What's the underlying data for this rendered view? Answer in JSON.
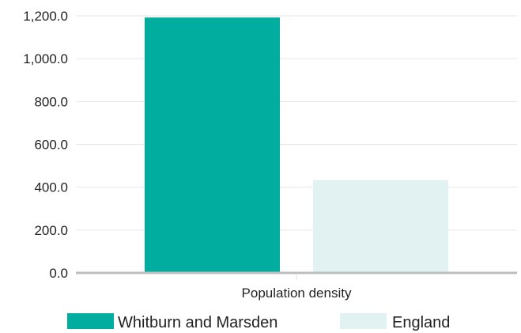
{
  "chart_data": {
    "type": "bar",
    "categories": [
      "Population density"
    ],
    "series": [
      {
        "name": "Whitburn and Marsden",
        "values": [
          1192.0
        ],
        "color": "#00ad9f"
      },
      {
        "name": "England",
        "values": [
          434.0
        ],
        "color": "#e2f2f2"
      }
    ],
    "yticks": [
      "0.0",
      "200.0",
      "400.0",
      "600.0",
      "800.0",
      "1,000.0",
      "1,200.0"
    ],
    "ylim": [
      0,
      1200
    ],
    "grid": true,
    "legend_position": "bottom",
    "gridline_color": "#e6e6e6",
    "axis_color": "#bdbdbd"
  }
}
